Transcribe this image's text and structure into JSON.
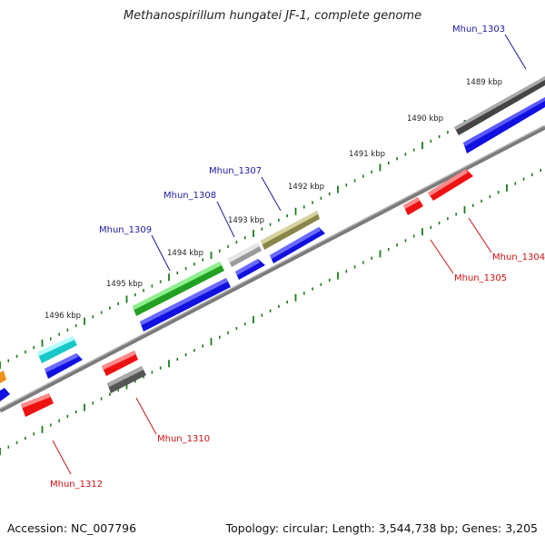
{
  "title": "Methanospirillum hungatei JF-1, complete genome",
  "footer": {
    "accession": "Accession: NC_007796",
    "topology": "Topology: circular; Length: 3,544,738 bp; Genes: 3,205"
  },
  "colors": {
    "backbone": "#8a8a8a",
    "tick": "#1a7a1a",
    "forward_label": "#1a1aa0",
    "reverse_label": "#cc1111",
    "cds": "#1010e0",
    "rev_gene": "#ee1111"
  },
  "scale_labels": [
    "1489 kbp",
    "1490 kbp",
    "1491 kbp",
    "1492 kbp",
    "1493 kbp",
    "1494 kbp",
    "1495 kbp",
    "1496 kbp"
  ],
  "gene_labels": {
    "forward": [
      "Mhun_1303",
      "Mhun_1307",
      "Mhun_1308",
      "Mhun_1309"
    ],
    "reverse": [
      "Mhun_1304",
      "Mhun_1305",
      "Mhun_1310",
      "Mhun_1312"
    ]
  }
}
